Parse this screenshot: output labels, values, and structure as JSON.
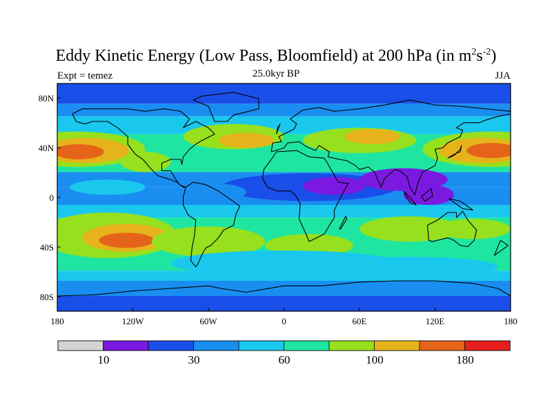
{
  "title": {
    "prefix": "Eddy Kinetic Energy (Low Pass, Bloomfield) at 200 hPa (in m",
    "exp1": "2",
    "middle": "s",
    "exp2": "-2",
    "suffix": ")"
  },
  "subtitle": "25.0kyr BP",
  "left_label": "Expt = temez",
  "right_label": "JJA",
  "axes": {
    "lat_ticks": [
      "80N",
      "40N",
      "0",
      "40S",
      "80S"
    ],
    "lon_ticks": [
      "180",
      "120W",
      "60W",
      "0",
      "60E",
      "120E",
      "180"
    ]
  },
  "colorbar": {
    "colors": [
      "#d4d4d4",
      "#7a1ae0",
      "#1a4ee8",
      "#1a8ef0",
      "#1ac8ee",
      "#1ee6a0",
      "#96e01e",
      "#e6b41a",
      "#e6641a",
      "#e61e1e"
    ],
    "labels": [
      "10",
      "30",
      "60",
      "100",
      "180"
    ]
  },
  "colors": {
    "fill_bins": [
      "#7a1ae0",
      "#1a4ee8",
      "#1a8ef0",
      "#1ac8ee",
      "#1ee6a0",
      "#96e01e",
      "#e6b41a",
      "#e6641a",
      "#e61e1e"
    ]
  }
}
